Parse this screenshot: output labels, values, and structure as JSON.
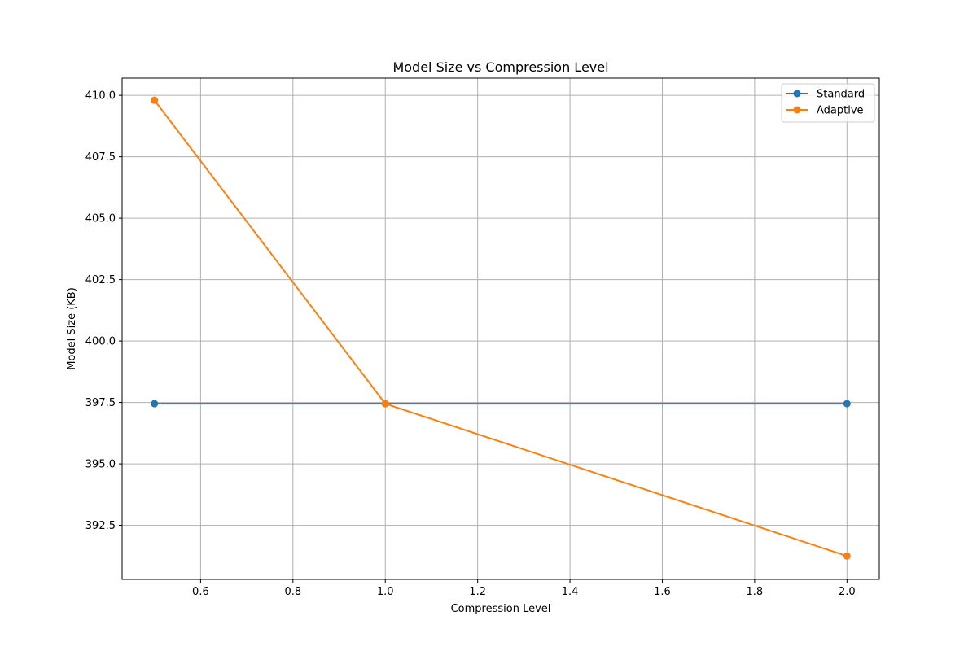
{
  "chart_data": {
    "type": "line",
    "title": "Model Size vs Compression Level",
    "xlabel": "Compression Level",
    "ylabel": "Model Size (KB)",
    "xlim": [
      0.43,
      2.07
    ],
    "ylim": [
      390.3,
      410.7
    ],
    "xticks": [
      0.6,
      0.8,
      1.0,
      1.2,
      1.4,
      1.6,
      1.8,
      2.0
    ],
    "xtick_labels": [
      "0.6",
      "0.8",
      "1.0",
      "1.2",
      "1.4",
      "1.6",
      "1.8",
      "2.0"
    ],
    "yticks": [
      392.5,
      395.0,
      397.5,
      400.0,
      402.5,
      405.0,
      407.5,
      410.0
    ],
    "ytick_labels": [
      "392.5",
      "395.0",
      "397.5",
      "400.0",
      "402.5",
      "405.0",
      "407.5",
      "410.0"
    ],
    "grid": true,
    "legend_position": "top-right",
    "series": [
      {
        "name": "Standard",
        "color": "#1f77b4",
        "x": [
          0.5,
          1.0,
          2.0
        ],
        "y": [
          397.45,
          397.45,
          397.45
        ]
      },
      {
        "name": "Adaptive",
        "color": "#ff7f0e",
        "x": [
          0.5,
          1.0,
          2.0
        ],
        "y": [
          409.8,
          397.45,
          391.25
        ]
      }
    ]
  }
}
